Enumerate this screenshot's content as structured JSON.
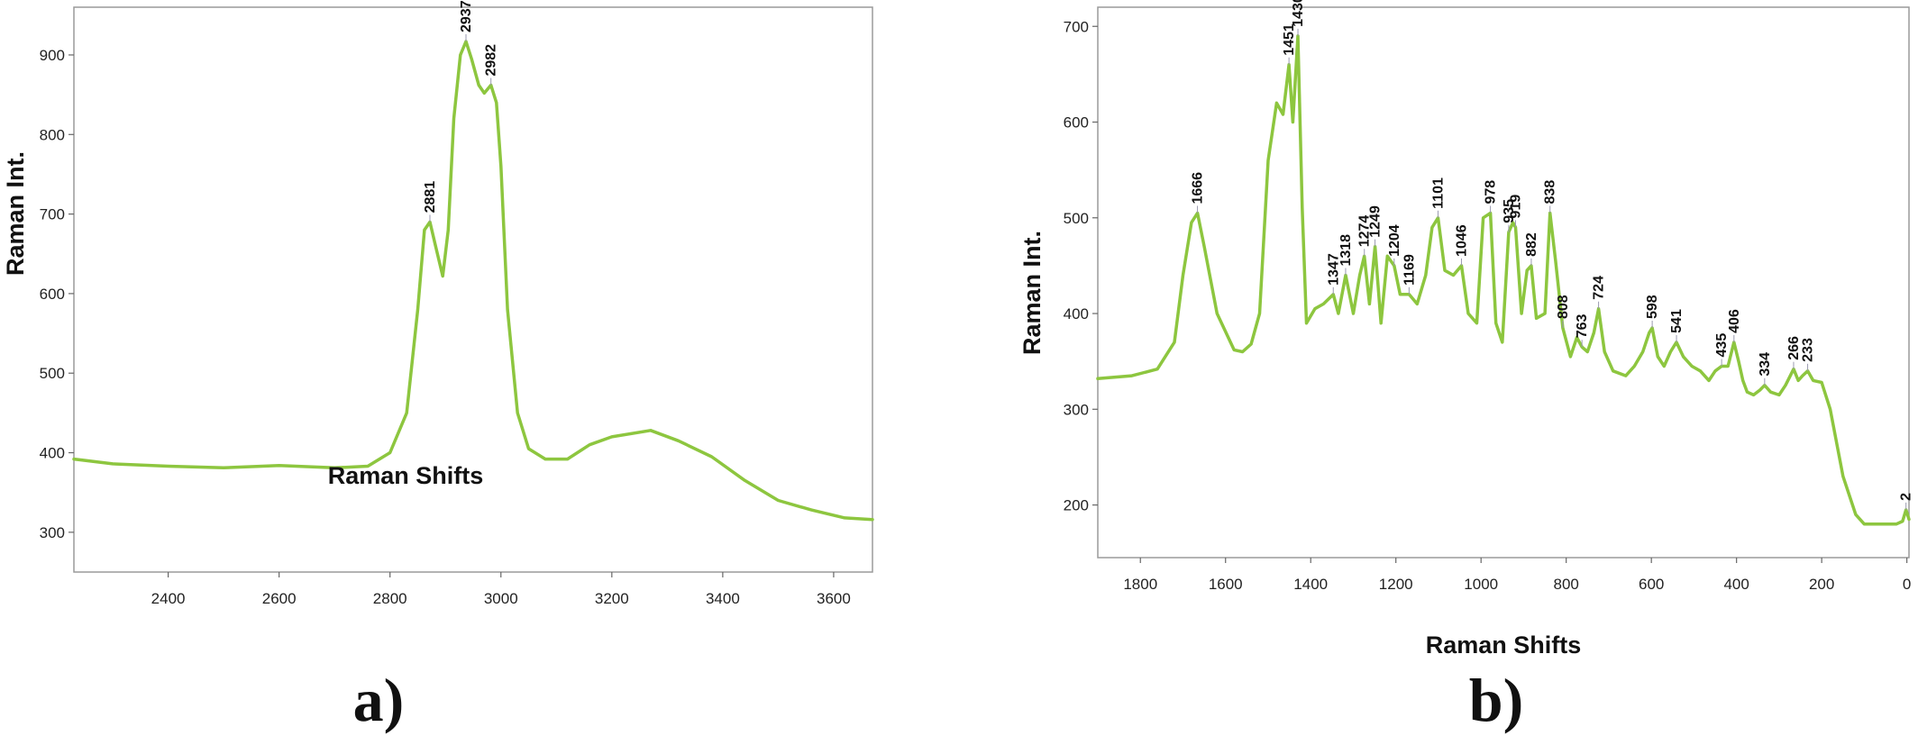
{
  "chart_data": [
    {
      "type": "line",
      "panel_label": "a)",
      "xlabel": "Raman Shifts",
      "ylabel": "Raman Int.",
      "xlim": [
        2230,
        3670
      ],
      "ylim": [
        250,
        960
      ],
      "x_ticks": [
        2400,
        2600,
        2800,
        3000,
        3200,
        3400,
        3600
      ],
      "y_ticks": [
        300,
        400,
        500,
        600,
        700,
        800,
        900
      ],
      "line_color": "#8dc63f",
      "series": [
        {
          "x": [
            2230,
            2300,
            2400,
            2500,
            2600,
            2700,
            2760,
            2800,
            2830,
            2850,
            2862,
            2872,
            2882,
            2895,
            2905,
            2915,
            2927,
            2937,
            2947,
            2960,
            2970,
            2982,
            2992,
            3000,
            3012,
            3030,
            3050,
            3080,
            3120,
            3160,
            3200,
            3270,
            3320,
            3380,
            3440,
            3500,
            3560,
            3620,
            3670
          ],
          "y": [
            392,
            386,
            383,
            381,
            384,
            381,
            383,
            400,
            450,
            580,
            680,
            690,
            660,
            622,
            680,
            820,
            900,
            917,
            895,
            862,
            852,
            862,
            840,
            760,
            580,
            450,
            405,
            392,
            392,
            410,
            420,
            428,
            415,
            395,
            365,
            340,
            328,
            318,
            316
          ]
        }
      ],
      "annotations": [
        {
          "label": "2881",
          "x": 2872,
          "y": 690
        },
        {
          "label": "2937",
          "x": 2937,
          "y": 917
        },
        {
          "label": "2982",
          "x": 2982,
          "y": 862
        }
      ]
    },
    {
      "type": "line",
      "panel_label": "b)",
      "xlabel": "Raman Shifts",
      "ylabel": "Raman Int.",
      "xlim": [
        1900,
        -5
      ],
      "ylim": [
        145,
        720
      ],
      "x_ticks": [
        1800,
        1600,
        1400,
        1200,
        1000,
        800,
        600,
        400,
        200,
        0
      ],
      "y_ticks": [
        200,
        300,
        400,
        500,
        600,
        700
      ],
      "line_color": "#8dc63f",
      "series": [
        {
          "x": [
            1900,
            1820,
            1760,
            1720,
            1700,
            1680,
            1666,
            1650,
            1620,
            1580,
            1560,
            1540,
            1520,
            1500,
            1480,
            1465,
            1451,
            1442,
            1430,
            1420,
            1410,
            1390,
            1370,
            1347,
            1335,
            1318,
            1300,
            1285,
            1274,
            1262,
            1249,
            1235,
            1220,
            1204,
            1190,
            1169,
            1150,
            1130,
            1115,
            1101,
            1085,
            1065,
            1046,
            1030,
            1010,
            995,
            978,
            965,
            950,
            935,
            925,
            919,
            905,
            892,
            882,
            870,
            850,
            838,
            825,
            808,
            790,
            775,
            763,
            750,
            735,
            724,
            710,
            690,
            660,
            640,
            620,
            605,
            598,
            585,
            570,
            555,
            541,
            525,
            505,
            485,
            465,
            450,
            435,
            420,
            406,
            395,
            385,
            375,
            360,
            345,
            334,
            320,
            300,
            285,
            266,
            255,
            245,
            233,
            220,
            200,
            180,
            150,
            120,
            100,
            60,
            25,
            10,
            2,
            -5
          ],
          "y": [
            332,
            335,
            342,
            370,
            440,
            495,
            505,
            470,
            400,
            362,
            360,
            368,
            400,
            560,
            620,
            608,
            660,
            600,
            690,
            510,
            390,
            405,
            410,
            420,
            400,
            440,
            400,
            440,
            460,
            410,
            470,
            390,
            460,
            450,
            420,
            420,
            410,
            440,
            490,
            500,
            445,
            440,
            450,
            400,
            390,
            500,
            505,
            390,
            370,
            485,
            495,
            490,
            400,
            445,
            450,
            395,
            400,
            505,
            455,
            385,
            355,
            375,
            365,
            360,
            380,
            405,
            360,
            340,
            335,
            345,
            360,
            380,
            385,
            355,
            345,
            360,
            370,
            355,
            345,
            340,
            330,
            340,
            345,
            345,
            370,
            350,
            330,
            318,
            315,
            320,
            325,
            318,
            315,
            325,
            342,
            330,
            335,
            340,
            330,
            328,
            300,
            230,
            190,
            180,
            180,
            180,
            183,
            195,
            185
          ]
        }
      ],
      "annotations": [
        {
          "label": "1666",
          "x": 1666,
          "y": 505
        },
        {
          "label": "1451",
          "x": 1451,
          "y": 660
        },
        {
          "label": "1430",
          "x": 1430,
          "y": 690
        },
        {
          "label": "1347",
          "x": 1347,
          "y": 420
        },
        {
          "label": "1318",
          "x": 1318,
          "y": 440
        },
        {
          "label": "1274",
          "x": 1274,
          "y": 460
        },
        {
          "label": "1249",
          "x": 1249,
          "y": 470
        },
        {
          "label": "1204",
          "x": 1204,
          "y": 450
        },
        {
          "label": "1169",
          "x": 1169,
          "y": 420
        },
        {
          "label": "1101",
          "x": 1101,
          "y": 500
        },
        {
          "label": "1046",
          "x": 1046,
          "y": 450
        },
        {
          "label": "978",
          "x": 978,
          "y": 505
        },
        {
          "label": "935",
          "x": 935,
          "y": 485
        },
        {
          "label": "919",
          "x": 919,
          "y": 490
        },
        {
          "label": "882",
          "x": 882,
          "y": 450
        },
        {
          "label": "838",
          "x": 838,
          "y": 505
        },
        {
          "label": "808",
          "x": 808,
          "y": 385
        },
        {
          "label": "763",
          "x": 763,
          "y": 365
        },
        {
          "label": "724",
          "x": 724,
          "y": 405
        },
        {
          "label": "598",
          "x": 598,
          "y": 385
        },
        {
          "label": "541",
          "x": 541,
          "y": 370
        },
        {
          "label": "435",
          "x": 435,
          "y": 345
        },
        {
          "label": "406",
          "x": 406,
          "y": 370
        },
        {
          "label": "334",
          "x": 334,
          "y": 325
        },
        {
          "label": "266",
          "x": 266,
          "y": 342
        },
        {
          "label": "233",
          "x": 233,
          "y": 340
        },
        {
          "label": "2",
          "x": 2,
          "y": 195
        }
      ]
    }
  ]
}
